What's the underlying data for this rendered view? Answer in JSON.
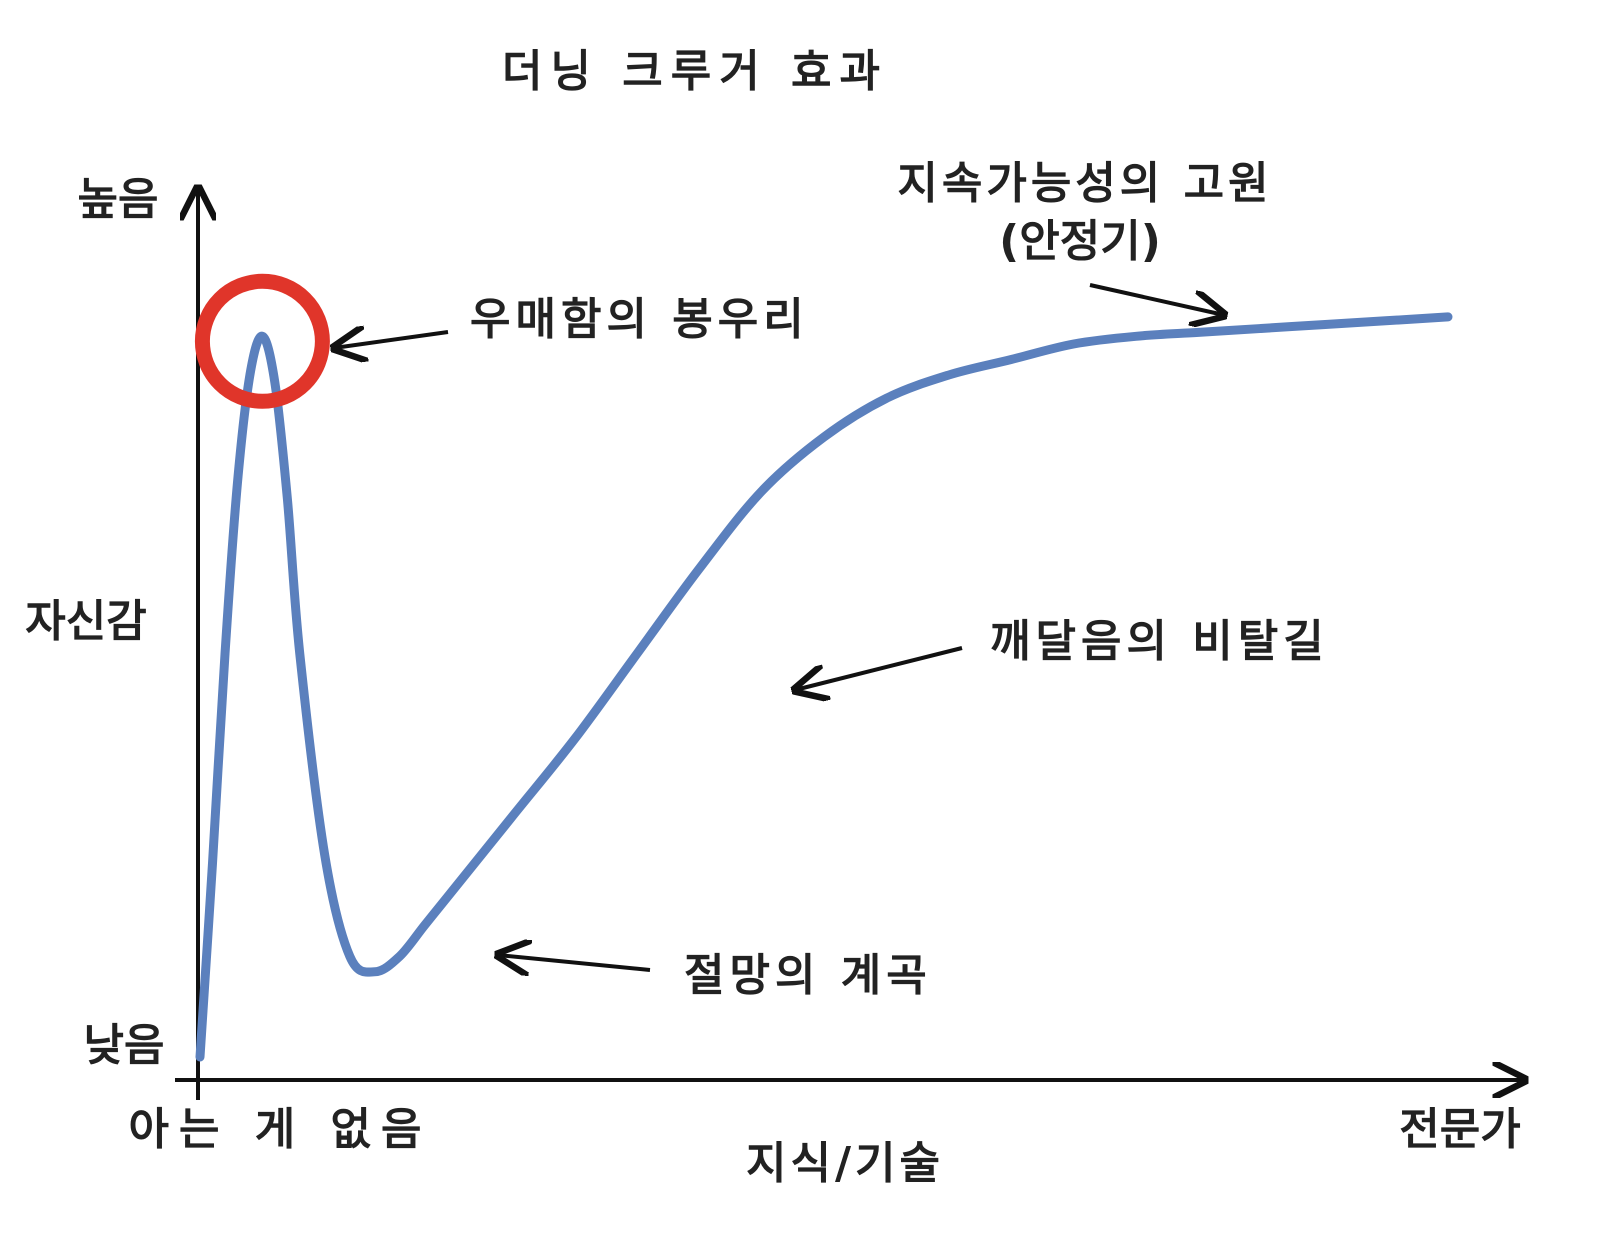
{
  "chart_data": {
    "type": "line",
    "title": "더닝 크루거 효과",
    "xlabel": "지식/기술",
    "ylabel": "자신감",
    "x_tick_labels": {
      "low": "아는 게 없음",
      "high": "전문가"
    },
    "y_tick_labels": {
      "high": "높음",
      "low": "낮음"
    },
    "xlim": [
      0,
      100
    ],
    "ylim": [
      0,
      100
    ],
    "grid": false,
    "series": [
      {
        "color": "#5b80bd",
        "x": [
          0,
          1,
          2,
          3,
          4,
          5,
          6,
          7,
          8,
          10,
          12,
          14,
          16,
          18,
          20,
          25,
          30,
          35,
          40,
          45,
          50,
          55,
          60,
          65,
          70,
          75,
          80,
          85,
          90,
          95,
          100
        ],
        "y": [
          0,
          25,
          52,
          74,
          88,
          93,
          87,
          72,
          52,
          26,
          13,
          11,
          13,
          17,
          21,
          31,
          41,
          52,
          63,
          73,
          80,
          85,
          88,
          90,
          92,
          93,
          93.5,
          94,
          94.5,
          95,
          95.5
        ]
      }
    ],
    "annotations": [
      {
        "label": "우매함의 봉우리",
        "target_x": 5,
        "target_y": 93
      },
      {
        "label": "절망의 계곡",
        "target_x": 20,
        "target_y": 12
      },
      {
        "label": "깨달음의 비탈길",
        "target_x": 40,
        "target_y": 52
      },
      {
        "label": "지속가능성의 고원",
        "label_line2": "(안정기)",
        "target_x": 70,
        "target_y": 86
      }
    ],
    "highlight": {
      "shape": "circle",
      "color": "#e0352a",
      "target_x": 5,
      "target_y": 93
    }
  }
}
